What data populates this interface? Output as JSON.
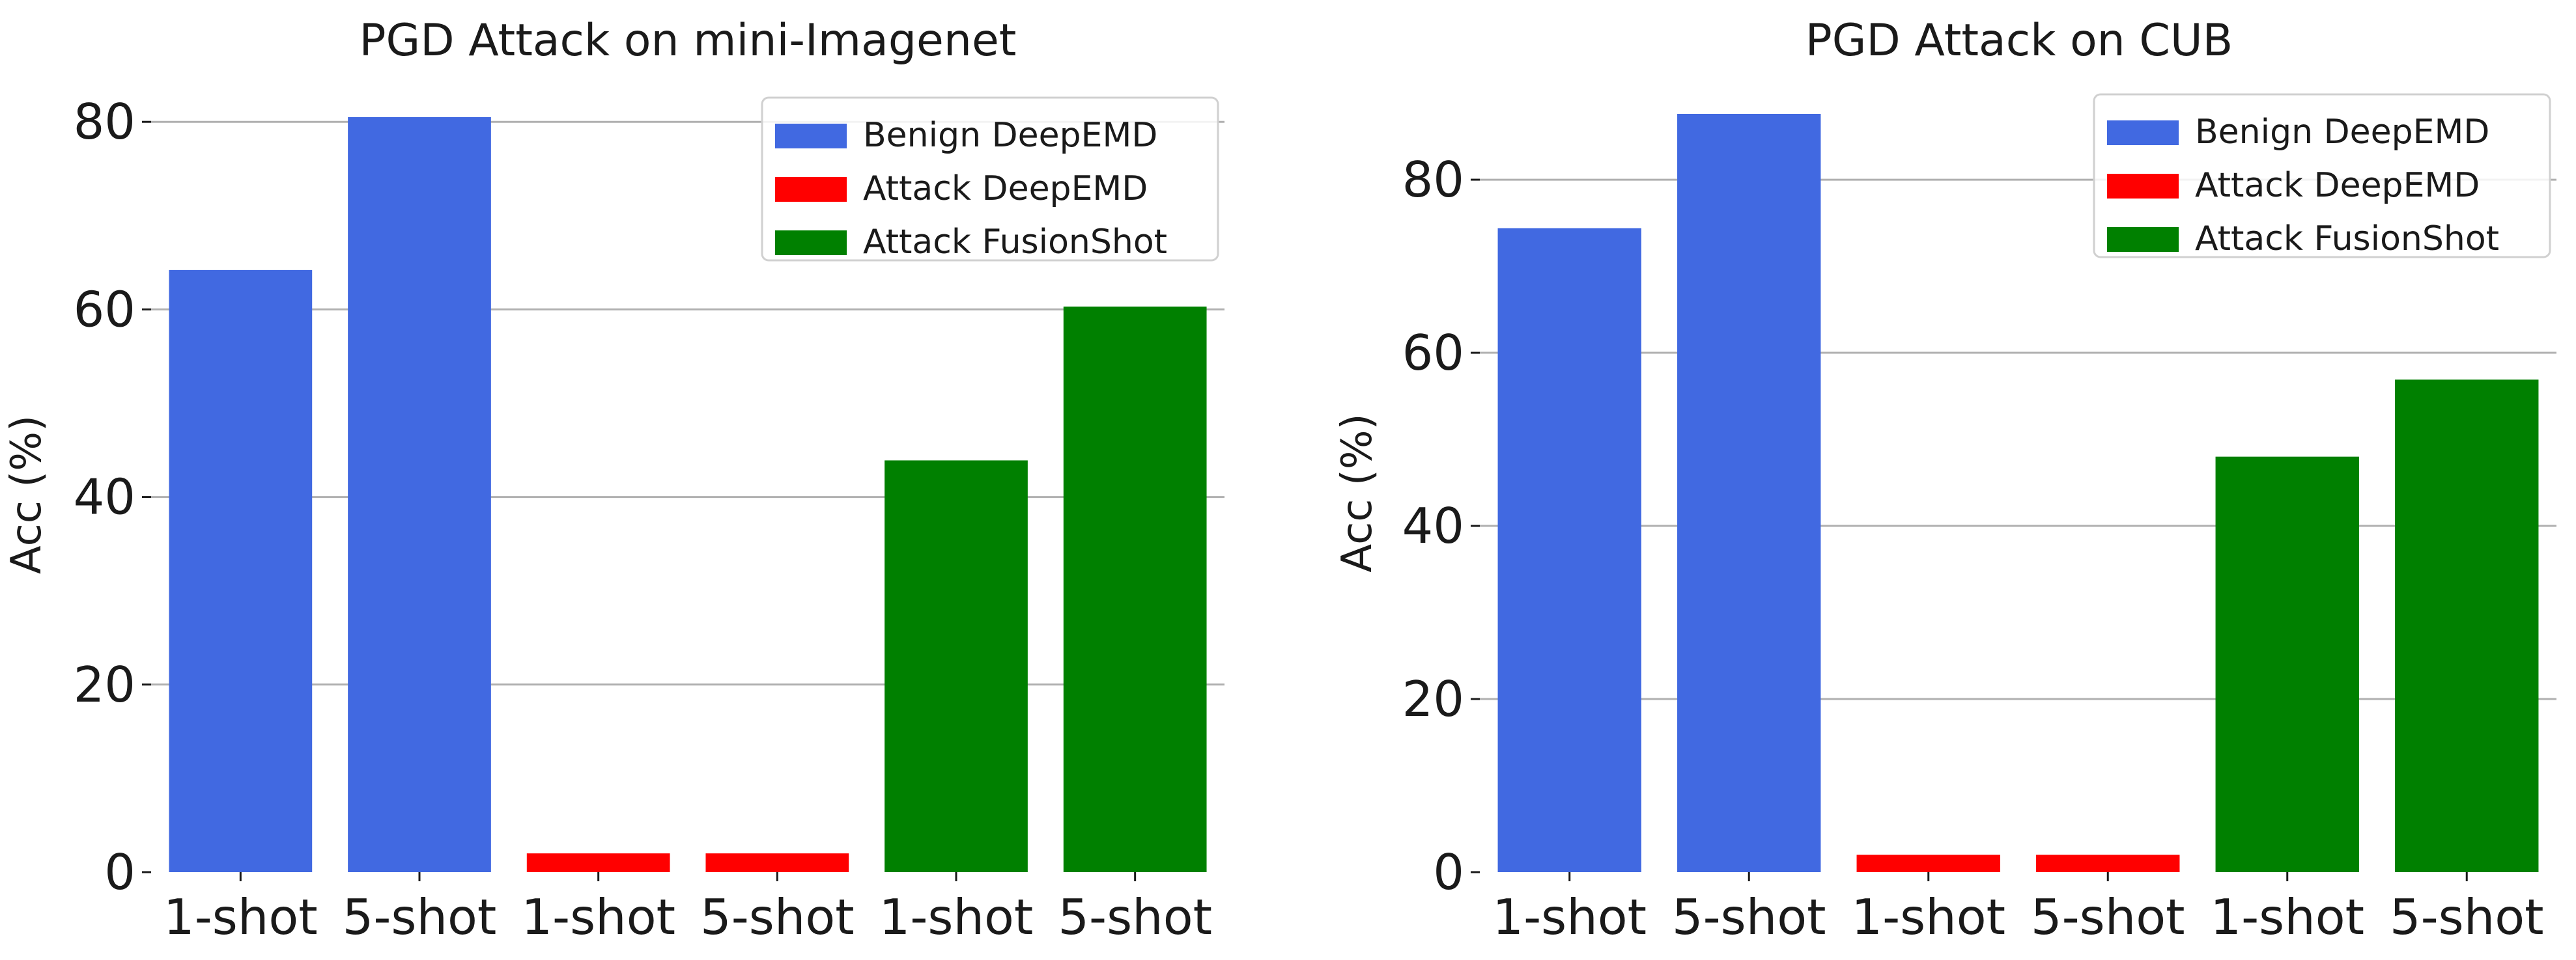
{
  "chart_data": [
    {
      "type": "bar",
      "title": "PGD Attack on mini-Imagenet",
      "ylabel": "Acc (%)",
      "xlabel": "",
      "categories": [
        "1-shot",
        "5-shot",
        "1-shot",
        "5-shot",
        "1-shot",
        "5-shot"
      ],
      "series": [
        {
          "name": "Benign DeepEMD",
          "color": "#4169e1",
          "values": [
            64.2,
            80.5,
            null,
            null,
            null,
            null
          ]
        },
        {
          "name": "Attack DeepEMD",
          "color": "#ff0000",
          "values": [
            null,
            null,
            2.0,
            2.0,
            null,
            null
          ]
        },
        {
          "name": "Attack FusionShot",
          "color": "#008000",
          "values": [
            null,
            null,
            null,
            null,
            43.9,
            60.3
          ]
        }
      ],
      "yticks": [
        0,
        20,
        40,
        60,
        80
      ],
      "ylim": [
        0,
        80.5
      ],
      "grid": "horizontal",
      "legend": "top-right"
    },
    {
      "type": "bar",
      "title": "PGD Attack on CUB",
      "ylabel": "Acc (%)",
      "xlabel": "",
      "categories": [
        "1-shot",
        "5-shot",
        "1-shot",
        "5-shot",
        "1-shot",
        "5-shot"
      ],
      "series": [
        {
          "name": "Benign DeepEMD",
          "color": "#4169e1",
          "values": [
            74.4,
            87.6,
            null,
            null,
            null,
            null
          ]
        },
        {
          "name": "Attack DeepEMD",
          "color": "#ff0000",
          "values": [
            null,
            null,
            2.0,
            2.0,
            null,
            null
          ]
        },
        {
          "name": "Attack FusionShot",
          "color": "#008000",
          "values": [
            null,
            null,
            null,
            null,
            48.0,
            56.9
          ]
        }
      ],
      "yticks": [
        0,
        20,
        40,
        60,
        80
      ],
      "ylim": [
        0,
        87.6
      ],
      "grid": "horizontal",
      "legend": "top-right"
    }
  ]
}
